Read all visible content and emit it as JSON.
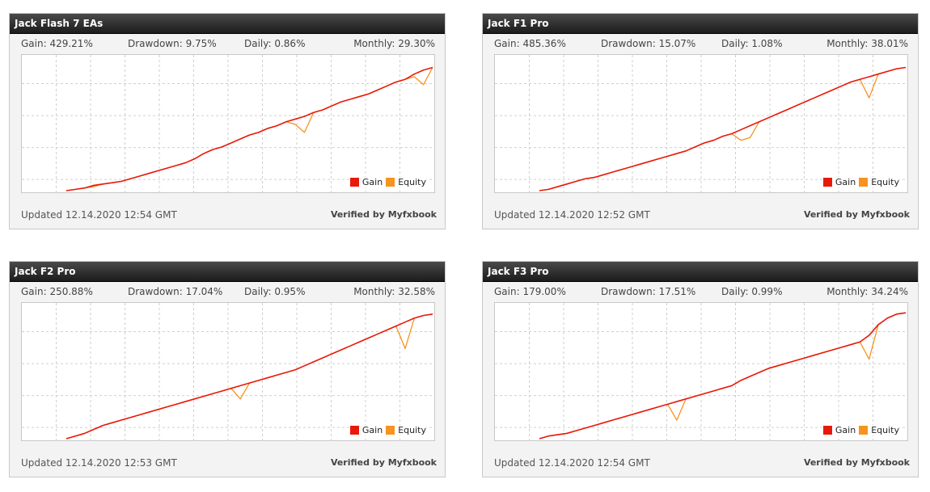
{
  "colors": {
    "gain": "#e8190a",
    "equity": "#f7931e",
    "grid": "#cfcfcf"
  },
  "widgets": [
    {
      "title": "Jack Flash 7 EAs",
      "gain_label": "Gain: 429.21%",
      "drawdown_label": "Drawdown: 9.75%",
      "daily_label": "Daily: 0.86%",
      "monthly_label": "Monthly: 29.30%",
      "updated": "Updated 12.14.2020 12:54 GMT",
      "verified": "Verified by Myfxbook",
      "legend_gain": "Gain",
      "legend_equity": "Equity"
    },
    {
      "title": "Jack F1 Pro",
      "gain_label": "Gain: 485.36%",
      "drawdown_label": "Drawdown: 15.07%",
      "daily_label": "Daily: 1.08%",
      "monthly_label": "Monthly: 38.01%",
      "updated": "Updated 12.14.2020 12:52 GMT",
      "verified": "Verified by Myfxbook",
      "legend_gain": "Gain",
      "legend_equity": "Equity"
    },
    {
      "title": "Jack F2 Pro",
      "gain_label": "Gain: 250.88%",
      "drawdown_label": "Drawdown: 17.04%",
      "daily_label": "Daily: 0.95%",
      "monthly_label": "Monthly: 32.58%",
      "updated": "Updated 12.14.2020 12:53 GMT",
      "verified": "Verified by Myfxbook",
      "legend_gain": "Gain",
      "legend_equity": "Equity"
    },
    {
      "title": "Jack F3 Pro",
      "gain_label": "Gain: 179.00%",
      "drawdown_label": "Drawdown: 17.51%",
      "daily_label": "Daily: 0.99%",
      "monthly_label": "Monthly: 34.24%",
      "updated": "Updated 12.14.2020 12:54 GMT",
      "verified": "Verified by Myfxbook",
      "legend_gain": "Gain",
      "legend_equity": "Equity"
    }
  ],
  "chart_data": [
    {
      "type": "line",
      "grid": true,
      "legend": "bottom-right",
      "x": [
        0,
        1,
        2,
        3,
        4,
        5,
        6,
        7,
        8,
        9,
        10,
        11,
        12,
        13,
        14,
        15,
        16,
        17,
        18,
        19,
        20,
        21,
        22,
        23,
        24,
        25,
        26,
        27,
        28,
        29,
        30,
        31,
        32,
        33,
        34,
        35,
        36,
        37,
        38,
        39,
        40
      ],
      "ylim": [
        0,
        100
      ],
      "series": [
        {
          "name": "Gain",
          "values": [
            0,
            1,
            2,
            4,
            5,
            6,
            7,
            9,
            11,
            13,
            15,
            17,
            19,
            21,
            24,
            28,
            31,
            33,
            36,
            39,
            42,
            44,
            47,
            49,
            52,
            54,
            56,
            59,
            61,
            64,
            67,
            69,
            71,
            73,
            76,
            79,
            82,
            84,
            88,
            91,
            93
          ]
        },
        {
          "name": "Equity",
          "values": [
            0,
            1,
            2,
            3,
            5,
            6,
            7,
            9,
            11,
            13,
            15,
            17,
            19,
            21,
            24,
            28,
            31,
            33,
            36,
            39,
            42,
            44,
            47,
            49,
            52,
            50,
            44,
            59,
            61,
            64,
            67,
            69,
            71,
            73,
            76,
            79,
            82,
            84,
            86,
            80,
            93
          ]
        }
      ]
    },
    {
      "type": "line",
      "grid": true,
      "legend": "bottom-right",
      "x": [
        0,
        1,
        2,
        3,
        4,
        5,
        6,
        7,
        8,
        9,
        10,
        11,
        12,
        13,
        14,
        15,
        16,
        17,
        18,
        19,
        20,
        21,
        22,
        23,
        24,
        25,
        26,
        27,
        28,
        29,
        30,
        31,
        32,
        33,
        34,
        35,
        36,
        37,
        38,
        39,
        40
      ],
      "ylim": [
        0,
        100
      ],
      "series": [
        {
          "name": "Gain",
          "values": [
            0,
            1,
            3,
            5,
            7,
            9,
            10,
            12,
            14,
            16,
            18,
            20,
            22,
            24,
            26,
            28,
            30,
            33,
            36,
            38,
            41,
            43,
            46,
            49,
            52,
            55,
            58,
            61,
            64,
            67,
            70,
            73,
            76,
            79,
            82,
            84,
            86,
            88,
            90,
            92,
            93
          ]
        },
        {
          "name": "Equity",
          "values": [
            0,
            1,
            3,
            5,
            7,
            9,
            10,
            12,
            14,
            16,
            18,
            20,
            22,
            24,
            26,
            28,
            30,
            33,
            36,
            38,
            41,
            43,
            38,
            40,
            52,
            55,
            58,
            61,
            64,
            67,
            70,
            73,
            76,
            79,
            82,
            84,
            70,
            88,
            90,
            92,
            93
          ]
        }
      ]
    },
    {
      "type": "line",
      "grid": true,
      "legend": "bottom-right",
      "x": [
        0,
        1,
        2,
        3,
        4,
        5,
        6,
        7,
        8,
        9,
        10,
        11,
        12,
        13,
        14,
        15,
        16,
        17,
        18,
        19,
        20,
        21,
        22,
        23,
        24,
        25,
        26,
        27,
        28,
        29,
        30,
        31,
        32,
        33,
        34,
        35,
        36,
        37,
        38,
        39,
        40
      ],
      "ylim": [
        0,
        100
      ],
      "series": [
        {
          "name": "Gain",
          "values": [
            0,
            2,
            4,
            7,
            10,
            12,
            14,
            16,
            18,
            20,
            22,
            24,
            26,
            28,
            30,
            32,
            34,
            36,
            38,
            40,
            42,
            44,
            46,
            48,
            50,
            52,
            55,
            58,
            61,
            64,
            67,
            70,
            73,
            76,
            79,
            82,
            85,
            88,
            91,
            93,
            94
          ]
        },
        {
          "name": "Equity",
          "values": [
            0,
            2,
            4,
            7,
            10,
            12,
            14,
            16,
            18,
            20,
            22,
            24,
            26,
            28,
            30,
            32,
            34,
            36,
            38,
            30,
            42,
            44,
            46,
            48,
            50,
            52,
            55,
            58,
            61,
            64,
            67,
            70,
            73,
            76,
            79,
            82,
            85,
            68,
            91,
            93,
            94
          ]
        }
      ]
    },
    {
      "type": "line",
      "grid": true,
      "legend": "bottom-right",
      "x": [
        0,
        1,
        2,
        3,
        4,
        5,
        6,
        7,
        8,
        9,
        10,
        11,
        12,
        13,
        14,
        15,
        16,
        17,
        18,
        19,
        20,
        21,
        22,
        23,
        24,
        25,
        26,
        27,
        28,
        29,
        30,
        31,
        32,
        33,
        34,
        35,
        36,
        37,
        38,
        39,
        40
      ],
      "ylim": [
        0,
        100
      ],
      "series": [
        {
          "name": "Gain",
          "values": [
            0,
            2,
            3,
            4,
            6,
            8,
            10,
            12,
            14,
            16,
            18,
            20,
            22,
            24,
            26,
            28,
            30,
            32,
            34,
            36,
            38,
            40,
            44,
            47,
            50,
            53,
            55,
            57,
            59,
            61,
            63,
            65,
            67,
            69,
            71,
            73,
            78,
            86,
            91,
            94,
            95
          ]
        },
        {
          "name": "Equity",
          "values": [
            0,
            2,
            3,
            4,
            6,
            8,
            10,
            12,
            14,
            16,
            18,
            20,
            22,
            24,
            26,
            14,
            30,
            32,
            34,
            36,
            38,
            40,
            44,
            47,
            50,
            53,
            55,
            57,
            59,
            61,
            63,
            65,
            67,
            69,
            71,
            73,
            60,
            86,
            91,
            94,
            95
          ]
        }
      ]
    }
  ]
}
